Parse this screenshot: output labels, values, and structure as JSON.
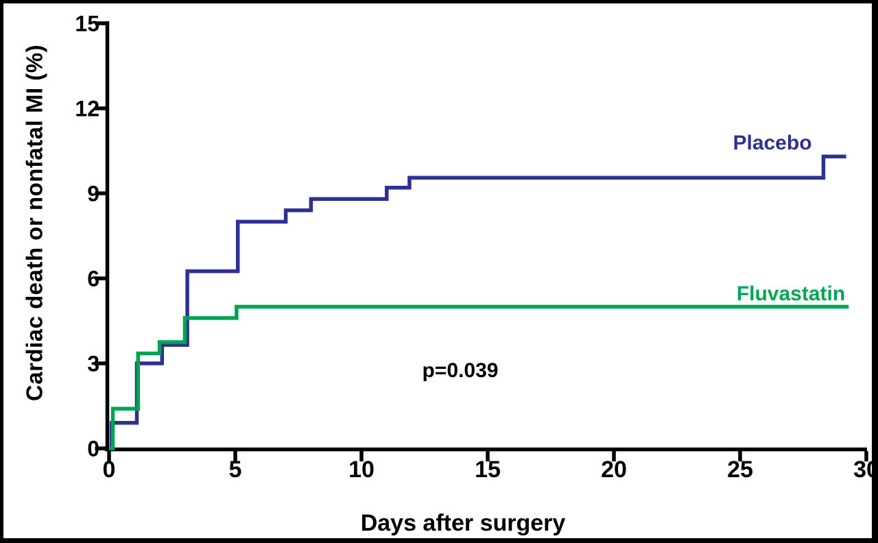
{
  "chart_data": {
    "type": "line",
    "subtype": "kaplan-meier-step",
    "title": "",
    "xlabel": "Days after surgery",
    "ylabel": "Cardiac death or nonfatal MI (%)",
    "annotation": "p=0.039",
    "xlim": [
      0,
      30
    ],
    "ylim": [
      0,
      15
    ],
    "xticks": [
      0,
      5,
      10,
      15,
      20,
      25,
      30
    ],
    "yticks": [
      0,
      3,
      6,
      9,
      12,
      15
    ],
    "grid": false,
    "legend_position": "inline-right-of-curves",
    "axis_color": "#000000",
    "background_color": "#ffffff",
    "series": [
      {
        "name": "Placebo",
        "color": "#2e3192",
        "step_mode": "after",
        "end_x": 29.2,
        "points": [
          [
            0,
            0
          ],
          [
            0.1,
            0.9
          ],
          [
            1.1,
            3.0
          ],
          [
            2.1,
            3.65
          ],
          [
            3.1,
            6.25
          ],
          [
            5.1,
            8.0
          ],
          [
            7.0,
            8.4
          ],
          [
            8.0,
            8.8
          ],
          [
            11.0,
            9.2
          ],
          [
            11.9,
            9.55
          ],
          [
            28.3,
            10.3
          ]
        ]
      },
      {
        "name": "Fluvastatin",
        "color": "#00a551",
        "step_mode": "after",
        "end_x": 29.3,
        "points": [
          [
            0,
            0
          ],
          [
            0.15,
            1.4
          ],
          [
            1.15,
            3.35
          ],
          [
            2.0,
            3.75
          ],
          [
            3.0,
            4.6
          ],
          [
            5.05,
            5.0
          ]
        ]
      }
    ]
  }
}
